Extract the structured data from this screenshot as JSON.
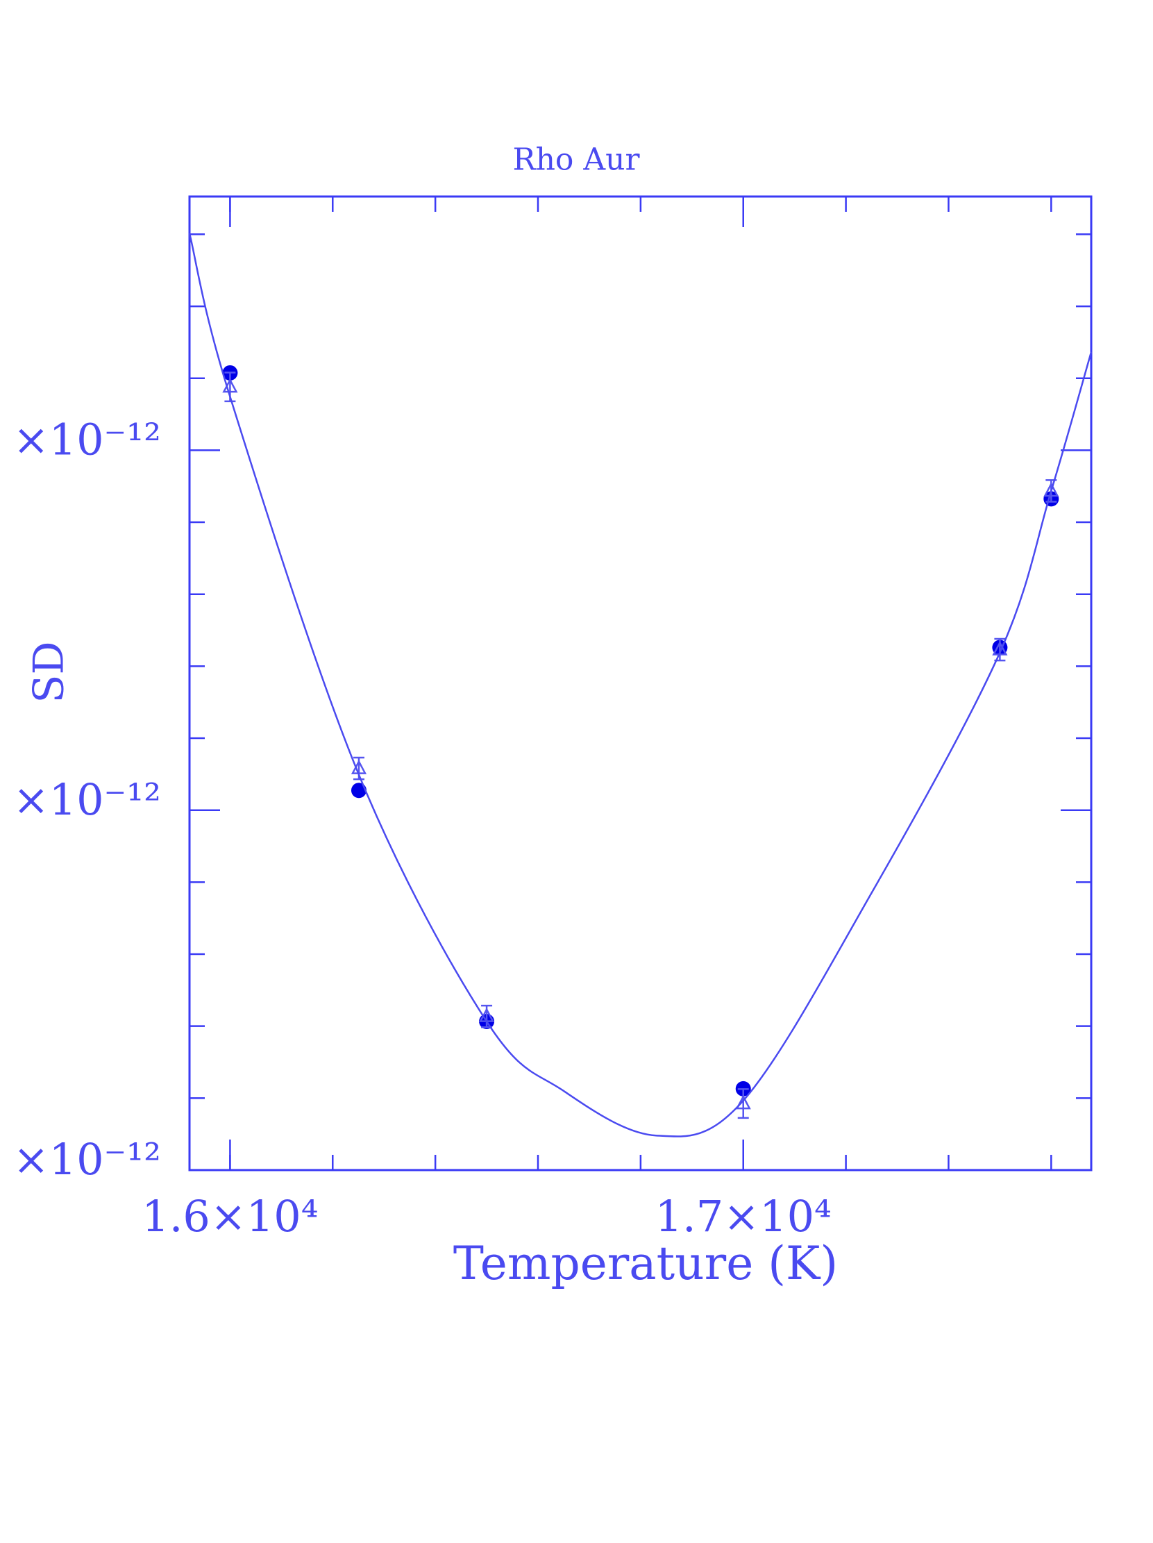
{
  "chart_data": {
    "type": "scatter",
    "title": "Rho Aur",
    "x_label": "Temperature (K)",
    "y_label": "SD",
    "xlim": [
      15921,
      17678
    ],
    "xticks": [
      {
        "value": 16000,
        "label": "1.6×10⁴"
      },
      {
        "value": 17000,
        "label": "1.7×10⁴"
      }
    ],
    "xminor": [
      16000,
      16200,
      16400,
      16600,
      16800,
      17000,
      17200,
      17400,
      17600
    ],
    "ylim": [
      1,
      3.705
    ],
    "yticks": [
      {
        "value": 1,
        "label": "×10⁻¹²"
      },
      {
        "value": 2,
        "label": "×10⁻¹²"
      },
      {
        "value": 3,
        "label": "×10⁻¹²"
      }
    ],
    "yminor": [
      1.2,
      1.4,
      1.6,
      1.8,
      2.2,
      2.4,
      2.6,
      2.8,
      3.2,
      3.4,
      3.6
    ],
    "color": "#3a3af5",
    "series": [
      {
        "marker": "circle",
        "color": "#0000e6",
        "x": [
          16000,
          16251,
          16500,
          17000,
          17500,
          17600
        ],
        "values": [
          3.215,
          2.055,
          1.413,
          1.226,
          2.452,
          2.865
        ]
      },
      {
        "marker": "triangle",
        "color": "#5555f0",
        "x": [
          16000,
          16251,
          16500,
          17000,
          17500,
          17600
        ],
        "values": [
          3.176,
          2.116,
          1.427,
          1.185,
          2.446,
          2.887
        ],
        "errors": [
          0.04,
          0.03,
          0.03,
          0.04,
          0.03,
          0.03
        ]
      },
      {
        "marker": "line",
        "color": "#4a4af0",
        "x": [
          15921,
          16000,
          16250,
          16500,
          16650,
          16830,
          17000,
          17250,
          17500,
          17600,
          17678
        ],
        "values": [
          3.603,
          3.149,
          2.102,
          1.413,
          1.22,
          1.096,
          1.193,
          1.77,
          2.438,
          2.887,
          3.273
        ]
      }
    ]
  }
}
